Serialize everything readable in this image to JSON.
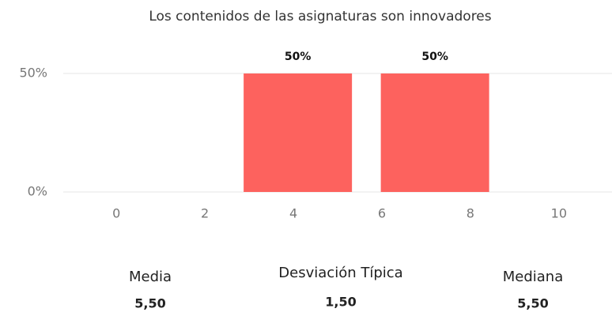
{
  "chart_data": {
    "type": "bar",
    "title": "Los contenidos de las asignaturas son innovadores",
    "x": [
      4.1,
      7.2
    ],
    "values": [
      50,
      50
    ],
    "value_labels": [
      "50%",
      "50%"
    ],
    "color": "#fd625e",
    "xlim": [
      -1.2,
      11.2
    ],
    "xticks": [
      0,
      2,
      4,
      6,
      8,
      10
    ],
    "ylim": [
      0,
      50
    ],
    "yticks": [
      {
        "value": 0,
        "label": "0%"
      },
      {
        "value": 50,
        "label": "50%"
      }
    ],
    "grid": true
  },
  "stats": [
    {
      "label": "Media",
      "value": "5,50"
    },
    {
      "label": "Desviación Típica",
      "value": "1,50"
    },
    {
      "label": "Mediana",
      "value": "5,50"
    }
  ]
}
